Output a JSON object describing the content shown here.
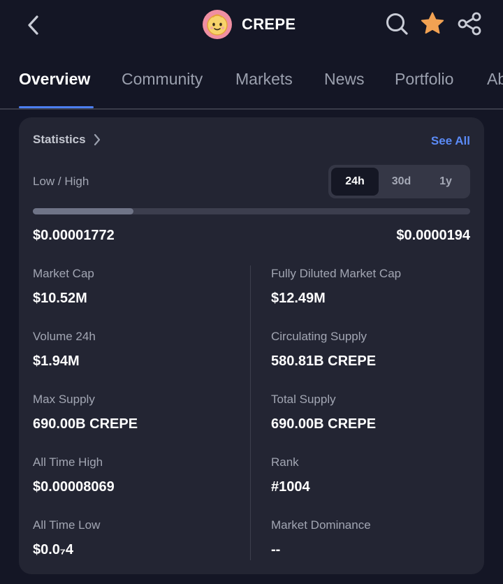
{
  "header": {
    "coin_name": "CREPE",
    "icons": [
      "chevron-left-icon",
      "search-icon",
      "star-icon",
      "share-icon"
    ],
    "star_color": "#f2a253"
  },
  "tabs": [
    {
      "label": "Overview",
      "active": true
    },
    {
      "label": "Community"
    },
    {
      "label": "Markets"
    },
    {
      "label": "News"
    },
    {
      "label": "Portfolio"
    },
    {
      "label": "About"
    }
  ],
  "statistics": {
    "title": "Statistics",
    "see_all": "See All",
    "low_high_label": "Low / High",
    "timeframes": [
      {
        "label": "24h",
        "active": true
      },
      {
        "label": "30d"
      },
      {
        "label": "1y"
      }
    ],
    "low": "$0.00001772",
    "high": "$0.0000194",
    "current_position_fraction": 0.23,
    "left_column": [
      {
        "label": "Market Cap",
        "value": "$10.52M"
      },
      {
        "label": "Volume 24h",
        "value": "$1.94M"
      },
      {
        "label": "Max Supply",
        "value": "690.00B CREPE"
      },
      {
        "label": "All Time High",
        "value": "$0.00008069"
      },
      {
        "label": "All Time Low",
        "value": "$0.0₇4"
      }
    ],
    "right_column": [
      {
        "label": "Fully Diluted Market Cap",
        "value": "$12.49M"
      },
      {
        "label": "Circulating Supply",
        "value": "580.81B CREPE"
      },
      {
        "label": "Total Supply",
        "value": "690.00B CREPE"
      },
      {
        "label": "Rank",
        "value": "#1004"
      },
      {
        "label": "Market Dominance",
        "value": "--"
      }
    ]
  },
  "colors": {
    "background": "#141625",
    "card": "#232533",
    "accent": "#4c7ef0",
    "link": "#5b8bf7"
  }
}
